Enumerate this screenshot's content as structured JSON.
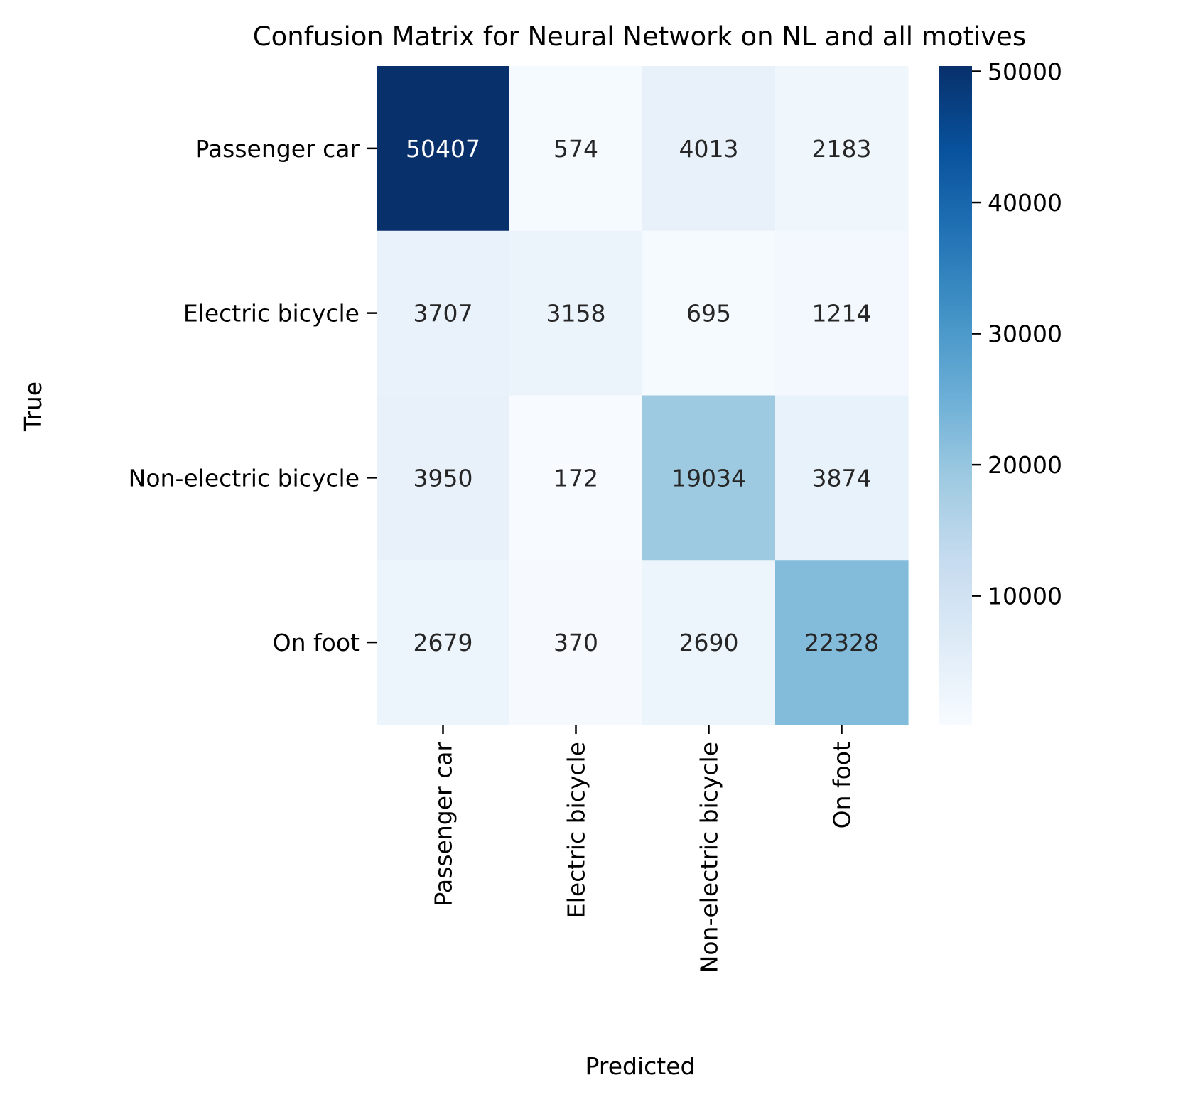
{
  "chart_data": {
    "type": "heatmap",
    "title": "Confusion Matrix for Neural Network on NL and all motives",
    "xlabel": "Predicted",
    "ylabel": "True",
    "x_categories": [
      "Passenger car",
      "Electric bicycle",
      "Non-electric bicycle",
      "On foot"
    ],
    "y_categories": [
      "Passenger car",
      "Electric bicycle",
      "Non-electric bicycle",
      "On foot"
    ],
    "values": [
      [
        50407,
        574,
        4013,
        2183
      ],
      [
        3707,
        3158,
        695,
        1214
      ],
      [
        3950,
        172,
        19034,
        3874
      ],
      [
        2679,
        370,
        2690,
        22328
      ]
    ],
    "colormap": "Blues",
    "colormap_stops": [
      "#f7fbff",
      "#deebf7",
      "#c6dbef",
      "#9ecae1",
      "#6baed6",
      "#4292c6",
      "#2171b5",
      "#08519c",
      "#08306b"
    ],
    "colorbar": {
      "range": [
        172,
        50407
      ],
      "ticks": [
        10000,
        20000,
        30000,
        40000,
        50000
      ],
      "tick_labels": [
        "10000",
        "20000",
        "30000",
        "40000",
        "50000"
      ]
    },
    "text_color_dark": "#262626",
    "text_color_light": "#ffffff"
  }
}
